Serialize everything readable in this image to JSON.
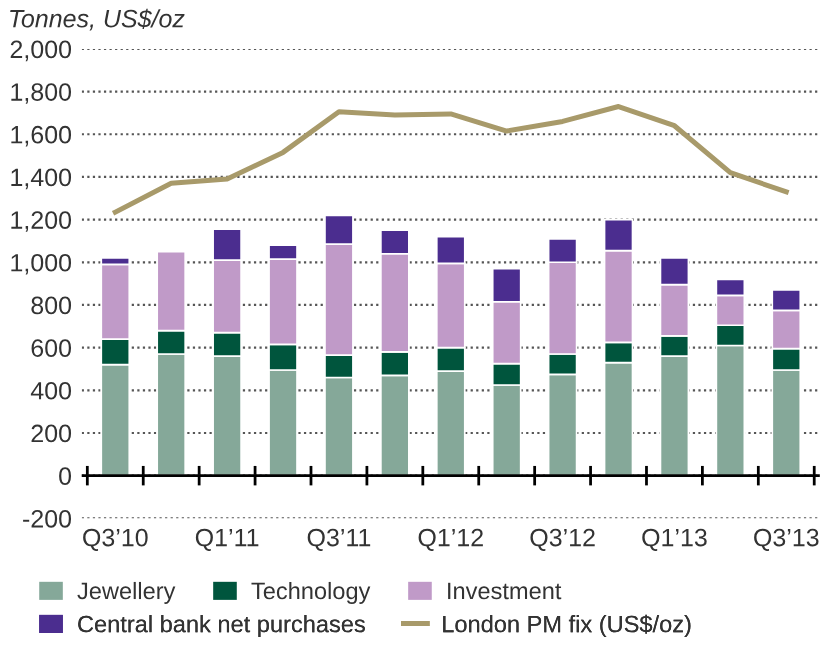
{
  "chart_data": {
    "type": "bar",
    "stacked": true,
    "ylabel": "Tonnes, US$/oz",
    "categories": [
      "Q3’10",
      null,
      "Q1’11",
      null,
      "Q3’11",
      null,
      "Q1’12",
      null,
      "Q3’12",
      null,
      "Q1’13",
      null,
      "Q3’13"
    ],
    "series": [
      {
        "name": "Jewellery",
        "color": "#85a899",
        "values": [
          520,
          570,
          560,
          495,
          460,
          470,
          490,
          425,
          475,
          530,
          560,
          610,
          495
        ]
      },
      {
        "name": "Technology",
        "color": "#00553d",
        "values": [
          120,
          110,
          110,
          120,
          105,
          110,
          110,
          100,
          95,
          95,
          95,
          95,
          100
        ]
      },
      {
        "name": "Investment",
        "color": "#c09ac8",
        "values": [
          350,
          370,
          340,
          400,
          520,
          460,
          395,
          290,
          430,
          430,
          240,
          140,
          180
        ]
      },
      {
        "name": "Central bank net purchases",
        "color": "#4b2d8f",
        "values": [
          30,
          -10,
          145,
          65,
          135,
          110,
          125,
          155,
          110,
          145,
          125,
          75,
          95
        ]
      },
      {
        "name": "London PM fix (US$/oz)",
        "type": "line",
        "color": "#a89a6a",
        "values": [
          1235,
          1370,
          1390,
          1515,
          1705,
          1690,
          1695,
          1615,
          1660,
          1730,
          1640,
          1420,
          1330
        ]
      }
    ],
    "ylim": [
      -200,
      2000
    ],
    "yticks": [
      {
        "value": -200,
        "label": "-200"
      },
      0,
      200,
      400,
      600,
      800,
      {
        "value": 1000,
        "label": "1,000"
      },
      {
        "value": 1200,
        "label": "1,200"
      },
      {
        "value": 1400,
        "label": "1,400"
      },
      {
        "value": 1600,
        "label": "1,600"
      },
      {
        "value": 1800,
        "label": "1,800"
      },
      {
        "value": 2000,
        "label": "2,000"
      }
    ],
    "grid": "y",
    "legend": "bottom",
    "marker": "none",
    "line_style": "solid"
  }
}
